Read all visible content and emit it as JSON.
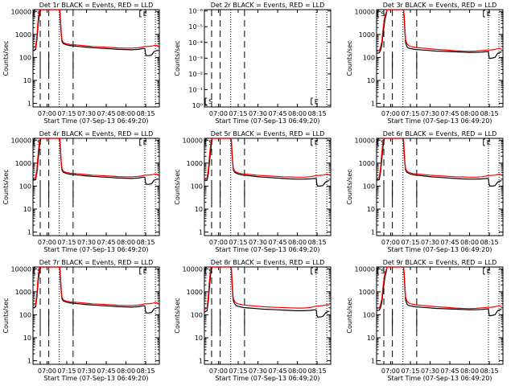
{
  "chart_data": {
    "type": "line",
    "layout": "3x3 grid",
    "yscale": "log",
    "ylabel": "Counts/sec",
    "xlabel": "Start Time (07-Sep-13 06:49:20)",
    "x_units": "minutes since 06:49:20",
    "xlim": [
      0,
      96
    ],
    "x_ticks": [
      {
        "min": 10.67,
        "label": "07:00"
      },
      {
        "min": 25.67,
        "label": "07:15"
      },
      {
        "min": 40.67,
        "label": "07:30"
      },
      {
        "min": 55.67,
        "label": "07:45"
      },
      {
        "min": 70.67,
        "label": "08:00"
      },
      {
        "min": 85.67,
        "label": "08:15"
      }
    ],
    "y_ticks_normal": [
      "1",
      "10",
      "100",
      "1000",
      "10000"
    ],
    "y_ticks_empty": [
      "10⁰",
      "10⁻¹",
      "10⁻²",
      "10⁻³",
      "10⁻⁴",
      "10⁻⁵",
      "10⁻⁶"
    ],
    "series_legend": {
      "black": "Events",
      "red": "LLD",
      "black_color": "#000000",
      "red_color": "#ff0000"
    },
    "vlines_dashed": [
      5.5,
      12.0,
      30.5
    ],
    "vlines_dotted": [
      20.0,
      85.0,
      93.0
    ],
    "markers": [
      {
        "min": 2.5,
        "label": "S"
      },
      {
        "min": 83.0,
        "label": "E"
      }
    ],
    "curve_minutes": [
      0,
      2,
      3,
      4,
      5,
      6,
      6.5,
      7,
      8,
      9,
      10,
      11,
      12,
      14,
      16,
      17,
      18,
      19,
      20,
      20.5,
      21,
      21.5,
      22,
      23,
      24,
      25,
      26,
      28,
      30,
      35,
      40,
      45,
      50,
      55,
      60,
      65,
      70,
      75,
      80,
      82,
      84,
      85,
      85.5,
      86,
      88,
      90,
      92,
      93,
      94,
      95
    ],
    "panels": [
      {
        "title": "Det 1r  BLACK = Events, RED = LLD",
        "empty": false,
        "events": [
          200,
          220,
          600,
          3000,
          8000,
          12000,
          12000,
          12000,
          12000,
          12000,
          12000,
          12000,
          12000,
          12000,
          12000,
          12000,
          12000,
          12000,
          12000,
          9000,
          2500,
          900,
          500,
          400,
          380,
          360,
          350,
          330,
          320,
          300,
          280,
          265,
          255,
          245,
          235,
          225,
          220,
          215,
          225,
          235,
          245,
          240,
          150,
          120,
          120,
          125,
          180,
          190,
          200,
          200
        ],
        "lld": [
          250,
          280,
          900,
          5000,
          12000,
          12000,
          12000,
          12000,
          12000,
          12000,
          12000,
          12000,
          12000,
          12000,
          12000,
          12000,
          12000,
          12000,
          12000,
          12000,
          4000,
          1200,
          600,
          450,
          420,
          400,
          390,
          370,
          360,
          340,
          320,
          300,
          290,
          280,
          270,
          260,
          255,
          255,
          265,
          275,
          290,
          300,
          300,
          300,
          305,
          310,
          330,
          340,
          330,
          320
        ]
      },
      {
        "title": "Det 2r  BLACK = Events, RED = LLD",
        "empty": true
      },
      {
        "title": "Det 3r  BLACK = Events, RED = LLD",
        "empty": false,
        "events": [
          150,
          160,
          200,
          350,
          1200,
          3000,
          5000,
          6000,
          12000,
          12000,
          12000,
          12000,
          12000,
          12000,
          12000,
          12000,
          12000,
          12000,
          12000,
          12000,
          5000,
          1200,
          450,
          300,
          260,
          250,
          240,
          230,
          220,
          210,
          200,
          190,
          185,
          180,
          175,
          170,
          165,
          165,
          170,
          175,
          180,
          175,
          100,
          90,
          95,
          100,
          150,
          160,
          170,
          170
        ],
        "lld": [
          180,
          200,
          280,
          500,
          2000,
          5000,
          7000,
          8000,
          12000,
          12000,
          12000,
          12000,
          12000,
          12000,
          12000,
          12000,
          12000,
          12000,
          12000,
          12000,
          7000,
          1800,
          600,
          400,
          340,
          320,
          300,
          285,
          270,
          255,
          240,
          225,
          215,
          205,
          195,
          190,
          185,
          190,
          200,
          205,
          210,
          210,
          210,
          210,
          215,
          225,
          240,
          250,
          240,
          230
        ]
      },
      {
        "title": "Det 4r  BLACK = Events, RED = LLD",
        "empty": false,
        "events": [
          180,
          190,
          400,
          1500,
          6000,
          12000,
          12000,
          12000,
          12000,
          12000,
          12000,
          12000,
          12000,
          12000,
          12000,
          12000,
          12000,
          12000,
          12000,
          8000,
          2500,
          900,
          500,
          400,
          380,
          360,
          350,
          330,
          320,
          300,
          280,
          265,
          255,
          245,
          235,
          225,
          220,
          215,
          225,
          235,
          245,
          240,
          150,
          120,
          120,
          125,
          180,
          190,
          200,
          200
        ],
        "lld": [
          220,
          240,
          600,
          3000,
          10000,
          12000,
          12000,
          12000,
          12000,
          12000,
          12000,
          12000,
          12000,
          12000,
          12000,
          12000,
          12000,
          12000,
          12000,
          12000,
          3800,
          1100,
          600,
          450,
          420,
          400,
          390,
          370,
          360,
          340,
          320,
          300,
          290,
          280,
          270,
          260,
          255,
          255,
          265,
          275,
          290,
          300,
          300,
          300,
          305,
          310,
          330,
          340,
          330,
          320
        ]
      },
      {
        "title": "Det 5r  BLACK = Events, RED = LLD",
        "empty": false,
        "events": [
          170,
          180,
          350,
          1300,
          5000,
          12000,
          12000,
          12000,
          12000,
          12000,
          12000,
          12000,
          12000,
          12000,
          12000,
          12000,
          12000,
          12000,
          12000,
          8000,
          2500,
          900,
          500,
          400,
          370,
          350,
          330,
          310,
          300,
          280,
          260,
          245,
          235,
          225,
          215,
          205,
          200,
          200,
          205,
          210,
          215,
          210,
          120,
          100,
          100,
          105,
          150,
          160,
          170,
          170
        ],
        "lld": [
          210,
          230,
          550,
          2500,
          9000,
          12000,
          12000,
          12000,
          12000,
          12000,
          12000,
          12000,
          12000,
          12000,
          12000,
          12000,
          12000,
          12000,
          12000,
          12000,
          3600,
          1100,
          600,
          450,
          410,
          390,
          370,
          350,
          340,
          320,
          300,
          285,
          275,
          265,
          255,
          250,
          245,
          245,
          255,
          265,
          280,
          290,
          290,
          290,
          295,
          300,
          320,
          330,
          320,
          310
        ]
      },
      {
        "title": "Det 6r  BLACK = Events, RED = LLD",
        "empty": false,
        "events": [
          180,
          190,
          400,
          1500,
          6000,
          12000,
          12000,
          12000,
          12000,
          12000,
          12000,
          12000,
          12000,
          12000,
          12000,
          12000,
          12000,
          12000,
          12000,
          8000,
          2500,
          900,
          500,
          400,
          370,
          350,
          330,
          310,
          300,
          280,
          260,
          245,
          235,
          225,
          215,
          205,
          200,
          200,
          205,
          210,
          215,
          210,
          120,
          100,
          100,
          105,
          150,
          160,
          170,
          170
        ],
        "lld": [
          220,
          240,
          600,
          3000,
          10000,
          12000,
          12000,
          12000,
          12000,
          12000,
          12000,
          12000,
          12000,
          12000,
          12000,
          12000,
          12000,
          12000,
          12000,
          12000,
          3800,
          1100,
          600,
          450,
          410,
          390,
          370,
          350,
          340,
          320,
          300,
          285,
          275,
          265,
          255,
          250,
          245,
          245,
          255,
          265,
          280,
          290,
          290,
          290,
          295,
          300,
          320,
          330,
          320,
          310
        ]
      },
      {
        "title": "Det 7r  BLACK = Events, RED = LLD",
        "empty": false,
        "events": [
          200,
          220,
          600,
          3000,
          8000,
          12000,
          12000,
          12000,
          12000,
          12000,
          12000,
          12000,
          12000,
          12000,
          12000,
          12000,
          12000,
          12000,
          12000,
          9000,
          2500,
          900,
          500,
          400,
          380,
          360,
          350,
          330,
          320,
          300,
          280,
          265,
          255,
          245,
          235,
          225,
          220,
          215,
          225,
          235,
          245,
          240,
          150,
          120,
          120,
          125,
          180,
          190,
          200,
          200
        ],
        "lld": [
          250,
          280,
          900,
          5000,
          12000,
          12000,
          12000,
          12000,
          12000,
          12000,
          12000,
          12000,
          12000,
          12000,
          12000,
          12000,
          12000,
          12000,
          12000,
          12000,
          4000,
          1200,
          600,
          450,
          420,
          400,
          390,
          370,
          360,
          340,
          320,
          300,
          290,
          280,
          270,
          260,
          255,
          255,
          265,
          275,
          290,
          300,
          300,
          300,
          305,
          310,
          330,
          340,
          330,
          320
        ]
      },
      {
        "title": "Det 8r  BLACK = Events, RED = LLD",
        "empty": false,
        "events": [
          130,
          150,
          400,
          2000,
          8000,
          12000,
          12000,
          12000,
          12000,
          12000,
          12000,
          12000,
          12000,
          12000,
          12000,
          12000,
          12000,
          12000,
          12000,
          9000,
          2500,
          700,
          400,
          300,
          260,
          240,
          230,
          215,
          205,
          195,
          185,
          175,
          170,
          165,
          160,
          155,
          150,
          150,
          155,
          160,
          165,
          160,
          95,
          80,
          80,
          85,
          120,
          130,
          140,
          140
        ],
        "lld": [
          170,
          200,
          700,
          4000,
          12000,
          12000,
          12000,
          12000,
          12000,
          12000,
          12000,
          12000,
          12000,
          12000,
          12000,
          12000,
          12000,
          12000,
          12000,
          12000,
          4000,
          1000,
          500,
          380,
          330,
          310,
          295,
          280,
          265,
          250,
          235,
          225,
          215,
          210,
          205,
          200,
          195,
          195,
          205,
          215,
          230,
          240,
          240,
          240,
          245,
          250,
          265,
          275,
          270,
          260
        ]
      },
      {
        "title": "Det 9r  BLACK = Events, RED = LLD",
        "empty": false,
        "events": [
          150,
          160,
          200,
          350,
          1200,
          3000,
          5000,
          6000,
          12000,
          12000,
          12000,
          12000,
          12000,
          12000,
          12000,
          12000,
          12000,
          12000,
          12000,
          12000,
          5000,
          1200,
          450,
          300,
          260,
          250,
          240,
          230,
          220,
          210,
          200,
          190,
          185,
          180,
          175,
          170,
          165,
          165,
          170,
          175,
          180,
          175,
          100,
          90,
          95,
          100,
          150,
          160,
          170,
          170
        ],
        "lld": [
          180,
          200,
          280,
          500,
          2000,
          5000,
          7000,
          8000,
          12000,
          12000,
          12000,
          12000,
          12000,
          12000,
          12000,
          12000,
          12000,
          12000,
          12000,
          12000,
          7000,
          1800,
          600,
          400,
          340,
          320,
          300,
          285,
          270,
          255,
          240,
          225,
          215,
          205,
          195,
          190,
          185,
          190,
          200,
          205,
          210,
          210,
          210,
          210,
          215,
          225,
          240,
          250,
          240,
          230
        ]
      }
    ]
  }
}
